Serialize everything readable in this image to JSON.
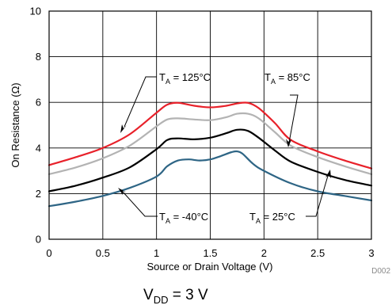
{
  "chart_data": {
    "type": "line",
    "xlabel": "Source or Drain Voltage (V)",
    "ylabel": "On Resistance (Ω)",
    "xlim": [
      0,
      3
    ],
    "ylim": [
      0,
      10
    ],
    "xticks": [
      "0",
      "0.5",
      "1",
      "1.5",
      "2",
      "2.5",
      "3"
    ],
    "yticks": [
      "0",
      "2",
      "4",
      "6",
      "8",
      "10"
    ],
    "grid": true,
    "series": [
      {
        "name": "T_A = 125°C",
        "color": "#e8212a",
        "x": [
          0,
          0.25,
          0.5,
          0.75,
          1.0,
          1.1,
          1.2,
          1.35,
          1.5,
          1.65,
          1.75,
          1.85,
          1.95,
          2.1,
          2.25,
          2.5,
          2.75,
          3.0
        ],
        "y": [
          3.25,
          3.6,
          4.0,
          4.6,
          5.55,
          5.9,
          5.98,
          5.85,
          5.78,
          5.85,
          5.95,
          5.98,
          5.75,
          5.1,
          4.35,
          3.85,
          3.45,
          3.1
        ]
      },
      {
        "name": "T_A = 85°C",
        "color": "#b3b3b3",
        "x": [
          0,
          0.25,
          0.5,
          0.75,
          1.0,
          1.1,
          1.2,
          1.35,
          1.5,
          1.65,
          1.75,
          1.85,
          1.95,
          2.1,
          2.25,
          2.5,
          2.75,
          3.0
        ],
        "y": [
          2.85,
          3.15,
          3.55,
          4.1,
          4.95,
          5.25,
          5.3,
          5.25,
          5.22,
          5.35,
          5.5,
          5.5,
          5.3,
          4.7,
          4.1,
          3.6,
          3.2,
          2.85
        ]
      },
      {
        "name": "T_A = 25°C",
        "color": "#000000",
        "x": [
          0,
          0.25,
          0.5,
          0.75,
          1.0,
          1.1,
          1.2,
          1.35,
          1.5,
          1.65,
          1.75,
          1.85,
          1.95,
          2.1,
          2.25,
          2.5,
          2.75,
          3.0
        ],
        "y": [
          2.1,
          2.35,
          2.7,
          3.15,
          3.95,
          4.35,
          4.42,
          4.38,
          4.45,
          4.65,
          4.8,
          4.75,
          4.45,
          3.9,
          3.4,
          2.95,
          2.6,
          2.35
        ]
      },
      {
        "name": "T_A = -40°C",
        "color": "#2e6585",
        "x": [
          0,
          0.25,
          0.5,
          0.75,
          1.0,
          1.1,
          1.2,
          1.3,
          1.4,
          1.5,
          1.6,
          1.7,
          1.75,
          1.8,
          1.9,
          2.0,
          2.25,
          2.5,
          2.75,
          3.0
        ],
        "y": [
          1.45,
          1.65,
          1.9,
          2.25,
          2.75,
          3.2,
          3.45,
          3.5,
          3.45,
          3.5,
          3.65,
          3.82,
          3.85,
          3.75,
          3.3,
          3.0,
          2.45,
          2.1,
          1.9,
          1.7
        ]
      }
    ],
    "annotations": [
      {
        "main": "T",
        "sub": "A",
        "rest": " = 125°C"
      },
      {
        "main": "T",
        "sub": "A",
        "rest": " = 85°C"
      },
      {
        "main": "T",
        "sub": "A",
        "rest": " = -40°C"
      },
      {
        "main": "T",
        "sub": "A",
        "rest": " = 25°C"
      }
    ],
    "footnote": {
      "main": "V",
      "sub": "DD",
      "rest": " = 3 V"
    },
    "figure_id": "D002"
  }
}
